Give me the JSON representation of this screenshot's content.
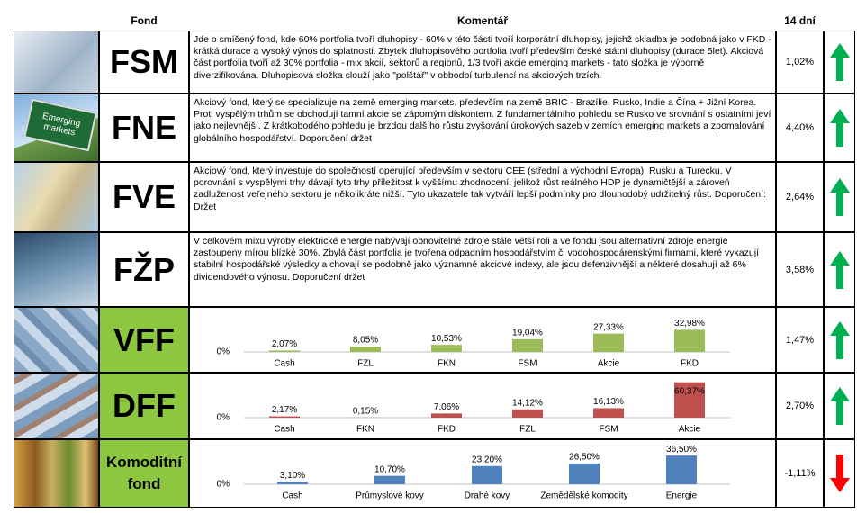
{
  "table": {
    "header": [
      "Fond",
      "Komentář",
      "14 dní"
    ],
    "rows": [
      {
        "fund": "FSM",
        "comment": "Jde o smíšený fond, kde 60% portfolia tvoří dluhopisy - 60% v této části tvoří korporátní dluhopisy, jejichž skladba je podobná jako v FKD - krátká durace a vysoký výnos do splatnosti. Zbytek dluhopisového portfolia tvoří především české státní dluhopisy (durace 5let). Akciová část portfolia tvoří až 30% portfolia - mix akcií, sektorů a regionů, 1/3 tvoří akcie emerging markets - tato složka je výborně diverzifikována. Dluhopisová složka slouží jako \"polštář\" v obbodbí turbulencí na akciových trzích.",
        "return": "1,02%",
        "trend": "up"
      },
      {
        "fund": "FNE",
        "photo_text": "Emerging markets",
        "comment": "Akciový fond, který se specializuje na země emerging markets, především na země BRIC - Brazílie, Rusko, Indie a Čína + Jižní Korea. Proti vyspělým trhům se obchodují tamní akcie se záporným diskontem. Z fundamentálního pohledu se Rusko ve srovnání s ostatními jeví jako nejlevnější.  Z krátkobodého pohledu je brzdou dalšího růstu zvyšování úrokových sazeb v zemích emerging markets a zpomalování globálního hospodářství. Doporučení držet",
        "return": "4,40%",
        "trend": "up"
      },
      {
        "fund": "FVE",
        "comment": "Akciový fond, který investuje do společností operující především v sektoru CEE (střední a východní Evropa), Rusku a Turecku. V porovnání s vyspělými trhy dávají tyto trhy příležitost k vyššímu zhodnocení, jelikož růst reálného HDP je dynamičtější a zároveň zadluženost veřejného sektoru je několikráte nižší. Tyto ukazatele tak vytváří lepší podmínky pro dlouhodobý udržitelný růst. Doporučení: Držet",
        "return": "2,64%",
        "trend": "up"
      },
      {
        "fund": "FŽP",
        "comment": "V celkovém mixu výroby elektrické energie nabývají obnovitelné zdroje stále větší roli a ve fondu jsou alternativní zdroje energie zastoupeny mírou blízké 30%.  Zbylá část portfolia je tvořena odpadním hospodářstvím či vodohospodárenskými firmami, které vykazují stabilní hospodářské výsledky a chovají se podobně jako významné akciové indexy, ale jsou defenzivnější a nékteré dosahují až 6% dividendového výnosu. Doporučení držet",
        "return": "3,58%",
        "trend": "up"
      },
      {
        "fund": "VFF",
        "chart": {
          "type": "bar",
          "categories": [
            "Cash",
            "FZL",
            "FKN",
            "FSM",
            "Akcie",
            "FKD"
          ],
          "values": [
            2.07,
            8.05,
            10.53,
            19.04,
            27.33,
            32.98
          ],
          "value_labels": [
            "2,07%",
            "8,05%",
            "10,53%",
            "19,04%",
            "27,33%",
            "32,98%"
          ],
          "color": "#9bbb59",
          "ylim": [
            0,
            55
          ],
          "yticks": [
            {
              "value": 0,
              "label": "0%"
            }
          ]
        },
        "return": "1,47%",
        "trend": "up"
      },
      {
        "fund": "DFF",
        "chart": {
          "type": "bar",
          "categories": [
            "Cash",
            "FKN",
            "FKD",
            "FZL",
            "FSM",
            "Akcie"
          ],
          "values": [
            2.17,
            0.15,
            7.06,
            14.12,
            16.13,
            60.37
          ],
          "value_labels": [
            "2,17%",
            "0,15%",
            "7,06%",
            "14,12%",
            "16,13%",
            "60,37%"
          ],
          "color": "#c0504d",
          "ylim": [
            0,
            63
          ],
          "yticks": [
            {
              "value": 0,
              "label": "0%"
            }
          ]
        },
        "return": "2,70%",
        "trend": "up"
      },
      {
        "fund": "Komoditní fond",
        "chart": {
          "type": "bar",
          "categories": [
            "Cash",
            "Průmyslové kovy",
            "Drahé kovy",
            "Zemědělské komodity",
            "Energie"
          ],
          "values": [
            3.1,
            10.7,
            23.2,
            26.5,
            36.5
          ],
          "value_labels": [
            "3,10%",
            "10,70%",
            "23,20%",
            "26,50%",
            "36,50%"
          ],
          "color": "#4f81bd",
          "ylim": [
            0,
            47
          ],
          "yticks": [
            {
              "value": 0,
              "label": "0%"
            }
          ]
        },
        "return": "-1,11%",
        "trend": "down"
      }
    ]
  }
}
